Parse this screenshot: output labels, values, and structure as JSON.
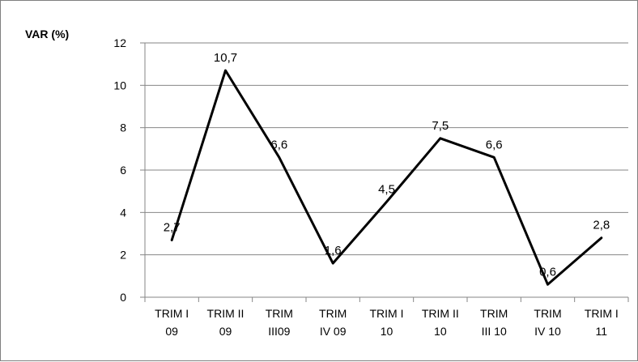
{
  "chart_data": {
    "type": "line",
    "title": "",
    "ylabel": "VAR (%)",
    "xlabel": "",
    "ylim": [
      0,
      12
    ],
    "yticks": [
      "0",
      "2",
      "4",
      "6",
      "8",
      "10",
      "12"
    ],
    "categories": [
      [
        "TRIM I",
        "09"
      ],
      [
        "TRIM II",
        "09"
      ],
      [
        "TRIM",
        "III09"
      ],
      [
        "TRIM",
        "IV 09"
      ],
      [
        "TRIM I",
        "10"
      ],
      [
        "TRIM II",
        "10"
      ],
      [
        "TRIM",
        "III 10"
      ],
      [
        "TRIM",
        "IV 10"
      ],
      [
        "TRIM I",
        "11"
      ]
    ],
    "series": [
      {
        "values": [
          2.7,
          10.7,
          6.6,
          1.6,
          4.5,
          7.5,
          6.6,
          0.6,
          2.8
        ],
        "labels": [
          "2,7",
          "10,7",
          "6,6",
          "1,6",
          "4,5",
          "7,5",
          "6,6",
          "0,6",
          "2,8"
        ],
        "color": "#000000"
      }
    ],
    "grid": true,
    "legend": "none"
  }
}
